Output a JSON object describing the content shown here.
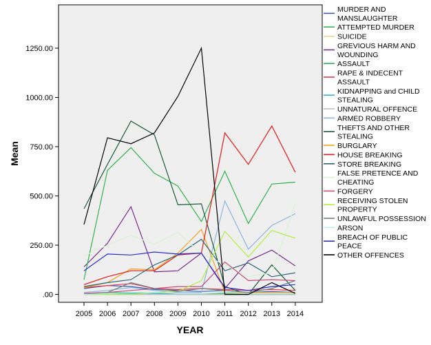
{
  "chart_data": {
    "type": "line",
    "title": "",
    "xlabel": "YEAR",
    "ylabel": "Mean",
    "x": [
      "2005",
      "2006",
      "2007",
      "2008",
      "2009",
      "2010",
      "2011",
      "2012",
      "2013",
      "2014"
    ],
    "ylim": [
      -40,
      1470
    ],
    "yticks": [
      {
        "value": 0,
        "label": ".00"
      },
      {
        "value": 250,
        "label": "250.00"
      },
      {
        "value": 500,
        "label": "500.00"
      },
      {
        "value": 750,
        "label": "750.00"
      },
      {
        "value": 1000,
        "label": "1000.00"
      },
      {
        "value": 1250,
        "label": "1250.00"
      }
    ],
    "grid": false,
    "legend_position": "right",
    "plot_background": "#efefef",
    "series": [
      {
        "name": "MURDER AND MANSLAUGHTER",
        "color": "#3a5fa8",
        "values": [
          30,
          45,
          40,
          25,
          20,
          15,
          20,
          10,
          15,
          10
        ]
      },
      {
        "name": "ATTEMPTED MURDER",
        "color": "#3ab54a",
        "values": [
          5,
          10,
          10,
          5,
          5,
          5,
          5,
          5,
          5,
          5
        ]
      },
      {
        "name": "SUICIDE",
        "color": "#e8d28a",
        "values": [
          0,
          0,
          0,
          0,
          0,
          0,
          0,
          0,
          0,
          0
        ]
      },
      {
        "name": "GREVIOUS HARM AND WOUNDING",
        "color": "#7b2a8f",
        "values": [
          140,
          260,
          445,
          115,
          120,
          210,
          30,
          170,
          225,
          145
        ]
      },
      {
        "name": "ASSAULT",
        "color": "#2db34a",
        "values": [
          75,
          630,
          745,
          615,
          550,
          370,
          625,
          360,
          560,
          570
        ]
      },
      {
        "name": "RAPE & INDECENT ASSAULT",
        "color": "#e8354a",
        "values": [
          35,
          45,
          55,
          30,
          25,
          30,
          25,
          20,
          25,
          20
        ]
      },
      {
        "name": "KIDNAPPING and CHILD STEALING",
        "color": "#3ab0e0",
        "values": [
          0,
          5,
          5,
          5,
          0,
          0,
          0,
          0,
          0,
          0
        ]
      },
      {
        "name": "UNNATURAL OFFENCE",
        "color": "#c0c0c0",
        "values": [
          0,
          0,
          0,
          0,
          0,
          0,
          0,
          0,
          0,
          0
        ]
      },
      {
        "name": "ARMED ROBBERY",
        "color": "#8fb4e0",
        "values": [
          10,
          20,
          35,
          20,
          10,
          10,
          475,
          230,
          350,
          410
        ]
      },
      {
        "name": "THEFTS AND OTHER STEALING",
        "color": "#1a5c3a",
        "values": [
          435,
          660,
          880,
          810,
          455,
          460,
          40,
          0,
          150,
          20
        ]
      },
      {
        "name": "BURGLARY",
        "color": "#f5a020",
        "values": [
          35,
          60,
          130,
          125,
          210,
          330,
          10,
          10,
          10,
          10
        ]
      },
      {
        "name": "HOUSE BREAKING",
        "color": "#e01818",
        "values": [
          50,
          90,
          120,
          120,
          200,
          210,
          820,
          660,
          855,
          620
        ]
      },
      {
        "name": "STORE BREAKING",
        "color": "#2a6878",
        "values": [
          40,
          60,
          75,
          150,
          200,
          280,
          120,
          160,
          90,
          110
        ]
      },
      {
        "name": "FALSE PRETENCE AND CHEATING",
        "color": "#d8f4d0",
        "values": [
          195,
          250,
          300,
          255,
          315,
          205,
          150,
          90,
          110,
          460
        ]
      },
      {
        "name": "FORGERY",
        "color": "#c84a7a",
        "values": [
          5,
          10,
          20,
          30,
          40,
          40,
          165,
          70,
          75,
          70
        ]
      },
      {
        "name": "RECEIVING STOLEN PROPERTY",
        "color": "#b0f040",
        "values": [
          0,
          0,
          0,
          10,
          15,
          70,
          320,
          190,
          325,
          285
        ]
      },
      {
        "name": "UNLAWFUL POSSESSION",
        "color": "#708088",
        "values": [
          0,
          10,
          60,
          30,
          15,
          30,
          20,
          10,
          30,
          70
        ]
      },
      {
        "name": "ARSON",
        "color": "#b8eef0",
        "values": [
          0,
          5,
          10,
          10,
          5,
          5,
          10,
          5,
          5,
          5
        ]
      },
      {
        "name": "BREACH OF PUBLIC PEACE",
        "color": "#2a2ad8",
        "values": [
          120,
          205,
          200,
          215,
          205,
          210,
          35,
          20,
          40,
          50
        ]
      },
      {
        "name": "OTHER OFFENCES",
        "color": "#000000",
        "values": [
          355,
          795,
          765,
          820,
          1005,
          1250,
          0,
          0,
          60,
          5
        ]
      }
    ]
  }
}
